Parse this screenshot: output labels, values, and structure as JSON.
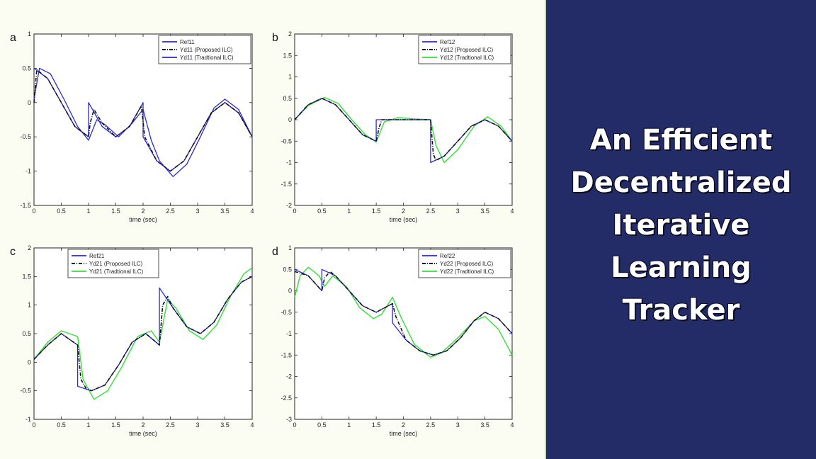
{
  "headline": {
    "lines": [
      "An Efficient",
      "Decentralized",
      "Iterative",
      "Learning",
      "Tracker"
    ]
  },
  "colors": {
    "right_panel": "#232c66",
    "left_background": "#fbfdf3",
    "ref": "#2a2ad8",
    "proposed": "#111111",
    "traditional": "#33e033"
  },
  "chart_data": [
    {
      "panel_letter": "a",
      "type": "line",
      "xlabel": "time (sec)",
      "xlim": [
        0,
        4
      ],
      "ylim": [
        -1.5,
        1
      ],
      "xticks": [
        "0",
        "0.5",
        "1",
        "1.5",
        "2",
        "2.5",
        "3",
        "3.5",
        "4"
      ],
      "yticks": [
        "-1.5",
        "-1",
        "-0.5",
        "0",
        "0.5",
        "1"
      ],
      "legend_position": "top-right",
      "series": [
        {
          "name": "Ref11",
          "style": "solid-blue",
          "x": [
            0,
            0.25,
            0.5,
            0.75,
            1.0,
            1.0,
            1.25,
            1.5,
            1.75,
            2.0,
            2.0,
            2.25,
            2.5,
            2.75,
            3.0,
            3.25,
            3.5,
            3.75,
            4.0
          ],
          "y": [
            0.5,
            0.35,
            0,
            -0.35,
            -0.5,
            0,
            -0.35,
            -0.5,
            -0.35,
            0,
            -0.5,
            -0.85,
            -1.0,
            -0.85,
            -0.5,
            -0.15,
            0,
            -0.15,
            -0.5
          ]
        },
        {
          "name": "Yd11 (Proposed ILC)",
          "style": "dashdot-black",
          "x": [
            0,
            0.05,
            0.25,
            0.5,
            0.75,
            1.0,
            1.03,
            1.1,
            1.25,
            1.5,
            1.75,
            1.97,
            2.03,
            2.25,
            2.5,
            2.75,
            3.0,
            3.25,
            3.5,
            3.75,
            4.0
          ],
          "y": [
            0,
            0.48,
            0.35,
            0,
            -0.35,
            -0.5,
            -0.3,
            -0.1,
            -0.3,
            -0.5,
            -0.35,
            -0.05,
            -0.5,
            -0.85,
            -1.0,
            -0.85,
            -0.5,
            -0.15,
            0,
            -0.15,
            -0.5
          ]
        },
        {
          "name": "Yd11 (Tradtional ILC)",
          "style": "solid-blue",
          "x": [
            0,
            0.1,
            0.3,
            0.55,
            0.8,
            1.0,
            1.15,
            1.3,
            1.55,
            1.8,
            2.0,
            2.15,
            2.3,
            2.55,
            2.8,
            3.05,
            3.3,
            3.5,
            3.75,
            4.0
          ],
          "y": [
            0.05,
            0.5,
            0.42,
            0.05,
            -0.35,
            -0.55,
            -0.25,
            -0.32,
            -0.5,
            -0.3,
            -0.1,
            -0.55,
            -0.85,
            -1.08,
            -0.9,
            -0.5,
            -0.08,
            0.05,
            -0.1,
            -0.5
          ]
        }
      ]
    },
    {
      "panel_letter": "b",
      "type": "line",
      "xlabel": "time (sec)",
      "xlim": [
        0,
        4
      ],
      "ylim": [
        -2,
        2
      ],
      "xticks": [
        "0",
        "0.5",
        "1",
        "1.5",
        "2",
        "2.5",
        "3",
        "3.5",
        "4"
      ],
      "yticks": [
        "-2",
        "-1.5",
        "-1",
        "-0.5",
        "0",
        "0.5",
        "1",
        "1.5",
        "2"
      ],
      "legend_position": "top-right",
      "series": [
        {
          "name": "Ref12",
          "style": "solid-blue",
          "x": [
            0,
            0.25,
            0.5,
            0.75,
            1.0,
            1.25,
            1.5,
            1.5,
            2.5,
            2.5,
            2.75,
            3.0,
            3.25,
            3.5,
            3.75,
            4.0
          ],
          "y": [
            0,
            0.35,
            0.5,
            0.35,
            0,
            -0.35,
            -0.5,
            0,
            0,
            -1.0,
            -0.85,
            -0.5,
            -0.15,
            0,
            -0.15,
            -0.5
          ]
        },
        {
          "name": "Yd12 (Proposed ILC)",
          "style": "dashdot-black",
          "x": [
            0,
            0.25,
            0.5,
            0.75,
            1.0,
            1.25,
            1.5,
            1.55,
            1.6,
            2.5,
            2.55,
            2.6,
            2.75,
            3.0,
            3.25,
            3.5,
            3.75,
            4.0
          ],
          "y": [
            0,
            0.35,
            0.5,
            0.35,
            0,
            -0.35,
            -0.5,
            -0.2,
            0,
            0,
            -0.8,
            -0.95,
            -0.85,
            -0.5,
            -0.15,
            0,
            -0.15,
            -0.5
          ]
        },
        {
          "name": "Yd12 (Tradtional ILC)",
          "style": "solid-green",
          "x": [
            0,
            0.25,
            0.55,
            0.8,
            1.05,
            1.3,
            1.5,
            1.65,
            1.9,
            2.2,
            2.5,
            2.6,
            2.75,
            3.0,
            3.3,
            3.55,
            3.8,
            4.0
          ],
          "y": [
            0,
            0.33,
            0.52,
            0.38,
            0,
            -0.35,
            -0.52,
            -0.05,
            0.05,
            0.02,
            0,
            -0.6,
            -1.0,
            -0.7,
            -0.15,
            0.07,
            -0.15,
            -0.5
          ]
        }
      ]
    },
    {
      "panel_letter": "c",
      "type": "line",
      "xlabel": "time (sec)",
      "xlim": [
        0,
        4
      ],
      "ylim": [
        -1,
        2
      ],
      "xticks": [
        "0",
        "0.5",
        "1",
        "1.5",
        "2",
        "2.5",
        "3",
        "3.5",
        "4"
      ],
      "yticks": [
        "-1",
        "-0.5",
        "0",
        "0.5",
        "1",
        "1.5",
        "2"
      ],
      "legend_position": "top-center",
      "series": [
        {
          "name": "Ref21",
          "style": "solid-blue",
          "x": [
            0,
            0.25,
            0.5,
            0.8,
            0.8,
            1.05,
            1.3,
            1.55,
            1.8,
            2.05,
            2.3,
            2.3,
            2.55,
            2.8,
            3.05,
            3.3,
            3.55,
            3.8,
            4.0
          ],
          "y": [
            0.05,
            0.3,
            0.5,
            0.3,
            -0.42,
            -0.5,
            -0.4,
            -0.05,
            0.35,
            0.5,
            0.3,
            1.3,
            0.95,
            0.62,
            0.5,
            0.7,
            1.1,
            1.4,
            1.5
          ]
        },
        {
          "name": "Yd21 (Proposed ILC)",
          "style": "dashdot-black",
          "x": [
            0,
            0.25,
            0.5,
            0.8,
            0.86,
            0.95,
            1.05,
            1.3,
            1.55,
            1.8,
            2.05,
            2.3,
            2.36,
            2.45,
            2.55,
            2.8,
            3.05,
            3.3,
            3.55,
            3.8,
            4.0
          ],
          "y": [
            0.05,
            0.3,
            0.5,
            0.3,
            -0.3,
            -0.45,
            -0.5,
            -0.4,
            -0.05,
            0.35,
            0.5,
            0.3,
            1.0,
            1.15,
            0.95,
            0.62,
            0.5,
            0.7,
            1.1,
            1.4,
            1.5
          ]
        },
        {
          "name": "Yd21 (Tradtional ILC)",
          "style": "solid-green",
          "x": [
            0,
            0.25,
            0.5,
            0.8,
            0.9,
            1.1,
            1.35,
            1.6,
            1.9,
            2.15,
            2.3,
            2.45,
            2.6,
            2.85,
            3.1,
            3.35,
            3.6,
            3.85,
            4.0
          ],
          "y": [
            0.05,
            0.35,
            0.55,
            0.45,
            -0.3,
            -0.65,
            -0.5,
            -0.1,
            0.45,
            0.55,
            0.35,
            1.1,
            0.95,
            0.55,
            0.4,
            0.65,
            1.15,
            1.55,
            1.65
          ]
        }
      ]
    },
    {
      "panel_letter": "d",
      "type": "line",
      "xlabel": "time (sec)",
      "xlim": [
        0,
        4
      ],
      "ylim": [
        -3,
        1
      ],
      "xticks": [
        "0",
        "0.5",
        "1",
        "1.5",
        "2",
        "2.5",
        "3",
        "3.5",
        "4"
      ],
      "yticks": [
        "-3",
        "-2.5",
        "-2",
        "-1.5",
        "-1",
        "-0.5",
        "0",
        "0.5",
        "1"
      ],
      "legend_position": "top-right",
      "series": [
        {
          "name": "Ref22",
          "style": "solid-blue",
          "x": [
            0,
            0.25,
            0.5,
            0.5,
            0.75,
            1.0,
            1.25,
            1.5,
            1.8,
            1.8,
            2.05,
            2.3,
            2.55,
            2.8,
            3.05,
            3.3,
            3.5,
            3.75,
            4.0
          ],
          "y": [
            0.5,
            0.35,
            0,
            0.5,
            0.35,
            0,
            -0.35,
            -0.5,
            -0.3,
            -0.75,
            -1.15,
            -1.4,
            -1.5,
            -1.4,
            -1.1,
            -0.7,
            -0.5,
            -0.65,
            -1.0
          ]
        },
        {
          "name": "Yd22 (Proposed ILC)",
          "style": "dashdot-black",
          "x": [
            0,
            0.25,
            0.5,
            0.55,
            0.65,
            0.75,
            1.0,
            1.25,
            1.5,
            1.8,
            1.86,
            2.05,
            2.3,
            2.55,
            2.8,
            3.05,
            3.3,
            3.5,
            3.75,
            4.0
          ],
          "y": [
            0.45,
            0.35,
            0,
            0.3,
            0.45,
            0.35,
            0,
            -0.35,
            -0.5,
            -0.3,
            -0.6,
            -1.15,
            -1.4,
            -1.5,
            -1.4,
            -1.1,
            -0.7,
            -0.5,
            -0.65,
            -1.0
          ]
        },
        {
          "name": "Yd22 (Tradtional ILC)",
          "style": "solid-green",
          "x": [
            0,
            0.1,
            0.25,
            0.45,
            0.55,
            0.7,
            0.95,
            1.2,
            1.45,
            1.6,
            1.8,
            1.95,
            2.2,
            2.5,
            2.7,
            3.0,
            3.3,
            3.5,
            3.75,
            4.0
          ],
          "y": [
            -0.15,
            0.35,
            0.55,
            0.35,
            0.1,
            0.35,
            0.1,
            -0.4,
            -0.65,
            -0.55,
            -0.15,
            -0.6,
            -1.25,
            -1.55,
            -1.45,
            -1.1,
            -0.7,
            -0.6,
            -0.9,
            -1.5
          ]
        }
      ]
    }
  ]
}
